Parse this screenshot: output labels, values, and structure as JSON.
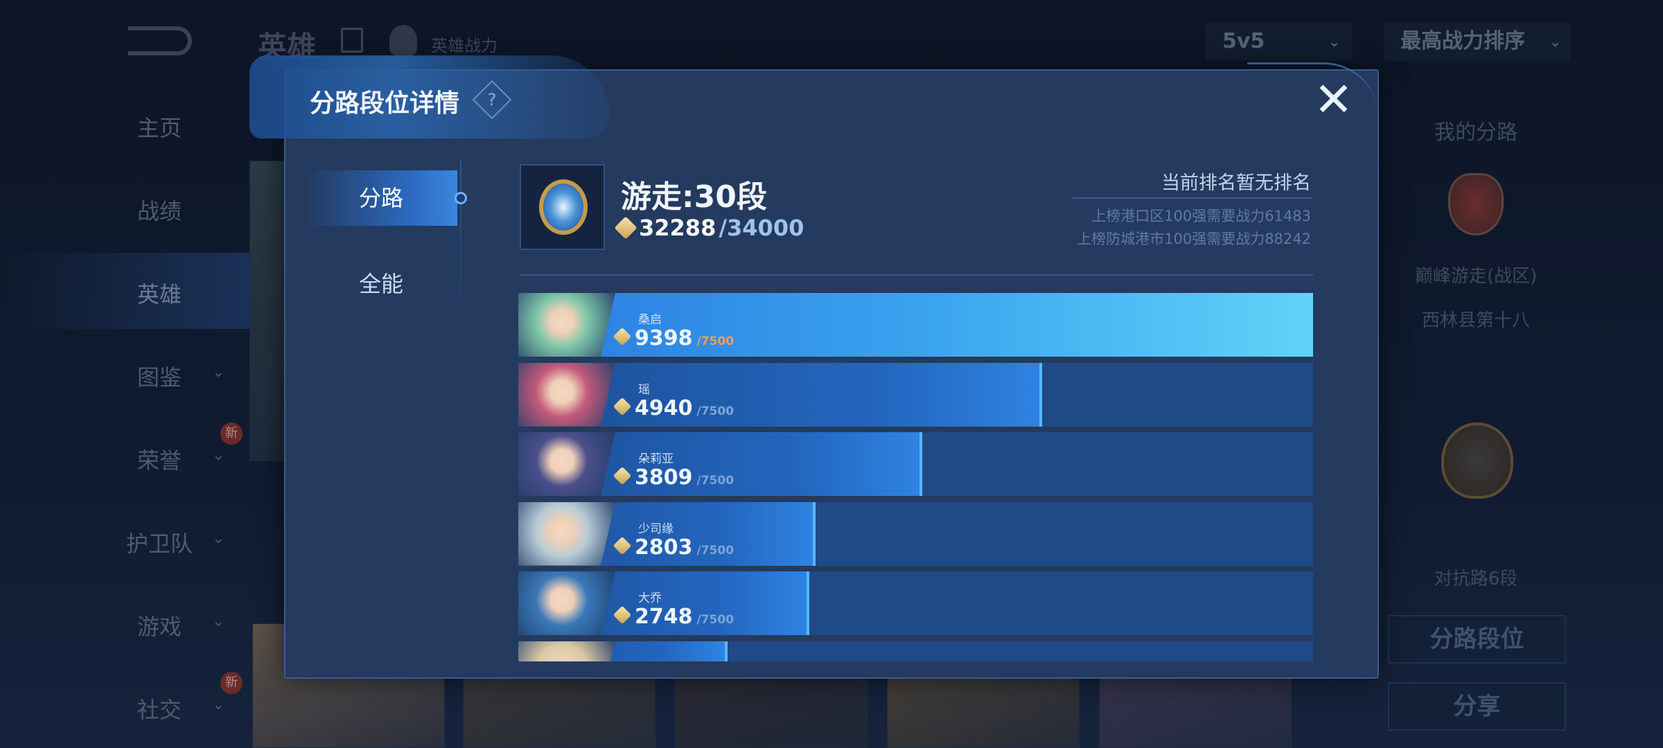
{
  "background": {
    "header": {
      "title": "英雄",
      "subtitle": "英雄战力",
      "mode_select": "5v5",
      "sort_select": "最高战力排序"
    },
    "sidebar": {
      "items": [
        {
          "label": "主页"
        },
        {
          "label": "战绩"
        },
        {
          "label": "英雄",
          "active": true
        },
        {
          "label": "图鉴",
          "chevron": true
        },
        {
          "label": "荣誉",
          "chevron": true,
          "badge": "新"
        },
        {
          "label": "护卫队",
          "chevron": true
        },
        {
          "label": "游戏",
          "chevron": true
        },
        {
          "label": "社交",
          "chevron": true,
          "badge": "新"
        }
      ]
    },
    "right_panel": {
      "heading": "我的分路",
      "peak_label": "巅峰游走(战区)",
      "region_rank": "西林县第十八",
      "lane_rank": "对抗路6段",
      "lane_button": "分路段位",
      "share_button": "分享"
    }
  },
  "modal": {
    "title": "分路段位详情",
    "help_icon": "?",
    "close_icon": "✕",
    "tabs": [
      {
        "label": "分路",
        "active": true
      },
      {
        "label": "全能"
      }
    ],
    "rank": {
      "title": "游走:30段",
      "score": "32288",
      "score_max": "/34000",
      "status": "当前排名暂无排名",
      "req_district": "上榜港口区100强需要战力61483",
      "req_city": "上榜防城港市100强需要战力88242"
    },
    "heroes": [
      {
        "name": "桑启",
        "score": "9398",
        "max": "/7500",
        "progress": 1.0,
        "color": "#7fc7a8"
      },
      {
        "name": "瑶",
        "score": "4940",
        "max": "/7500",
        "progress": 0.659,
        "color": "#c45a7a"
      },
      {
        "name": "朵莉亚",
        "score": "3809",
        "max": "/7500",
        "progress": 0.508,
        "color": "#4a4f8a"
      },
      {
        "name": "少司缘",
        "score": "2803",
        "max": "/7500",
        "progress": 0.374,
        "color": "#b9ccd6"
      },
      {
        "name": "大乔",
        "score": "2748",
        "max": "/7500",
        "progress": 0.366,
        "color": "#3a78b8"
      },
      {
        "progress": 0.263,
        "color": "#d9c9a4"
      }
    ]
  },
  "colors": {
    "accent": "#3b86e0",
    "gold": "#e0c27a",
    "max_highlight": "#f0a24a"
  }
}
